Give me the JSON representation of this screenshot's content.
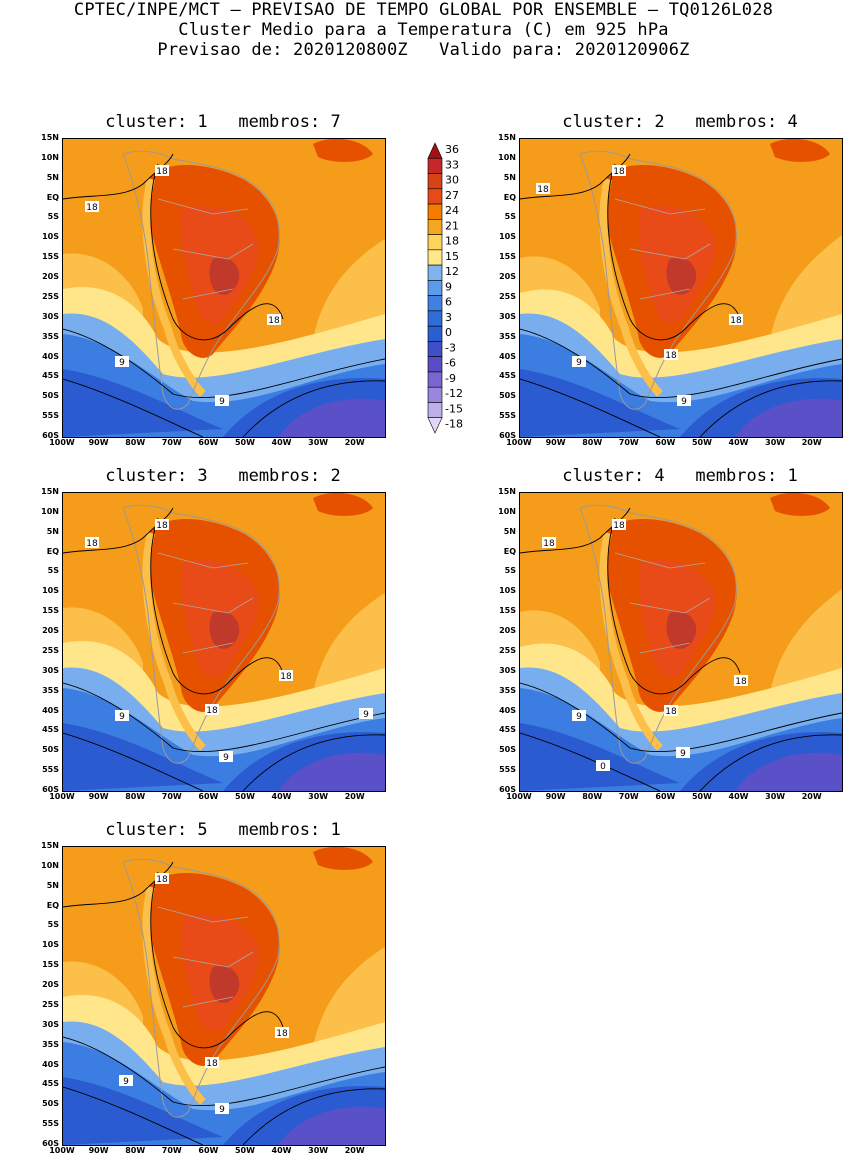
{
  "header": {
    "line1": "CPTEC/INPE/MCT – PREVISAO DE TEMPO GLOBAL POR ENSEMBLE – TQ0126L028",
    "line2": "Cluster Medio para a Temperatura (C) em 925 hPa",
    "line3": "Previsao de: 2020120800Z   Valido para: 2020120906Z"
  },
  "panels": [
    {
      "title": "cluster: 1   membros: 7",
      "labels": [
        "18",
        "18",
        "18",
        "9",
        "9"
      ]
    },
    {
      "title": "cluster: 2   membros: 4",
      "labels": [
        "18",
        "18",
        "18",
        "18",
        "9",
        "9"
      ]
    },
    {
      "title": "cluster: 3   membros: 2",
      "labels": [
        "18",
        "18",
        "18",
        "18",
        "9",
        "9",
        "9"
      ]
    },
    {
      "title": "cluster: 4   membros: 1",
      "labels": [
        "18",
        "18",
        "18",
        "18",
        "9",
        "9",
        "0"
      ]
    },
    {
      "title": "cluster: 5   membros: 1",
      "labels": [
        "18",
        "18",
        "18",
        "9",
        "9"
      ]
    }
  ],
  "lat_ticks": [
    "15N",
    "10N",
    "5N",
    "EQ",
    "5S",
    "10S",
    "15S",
    "20S",
    "25S",
    "30S",
    "35S",
    "40S",
    "45S",
    "50S",
    "55S",
    "60S"
  ],
  "lon_ticks": [
    "100W",
    "90W",
    "80W",
    "70W",
    "60W",
    "50W",
    "40W",
    "30W",
    "20W"
  ],
  "colorbar": {
    "labels": [
      "36",
      "33",
      "30",
      "27",
      "24",
      "21",
      "18",
      "15",
      "12",
      "9",
      "6",
      "3",
      "0",
      "-3",
      "-6",
      "-9",
      "-12",
      "-15",
      "-18"
    ],
    "colors": [
      "#a50f15",
      "#c62828",
      "#d84315",
      "#e64a19",
      "#f57c00",
      "#f5a623",
      "#fdd35c",
      "#ffe88a",
      "#7fb3ee",
      "#5b9bea",
      "#3f80e0",
      "#2f6ed8",
      "#2b5ed0",
      "#3e4fc8",
      "#5a4cc6",
      "#7a66d0",
      "#9a86dc",
      "#bdb0ea",
      "#e0d8f5"
    ]
  },
  "colors": {
    "warm_core": "#c0392b",
    "warm": "#e65100",
    "orange": "#f59c1a",
    "light_orange": "#fbbf4a",
    "yellow": "#ffe68a",
    "light_blue": "#78aeee",
    "blue": "#3b7de0",
    "deep_blue": "#2a5bd0",
    "purple": "#5a50c8"
  }
}
